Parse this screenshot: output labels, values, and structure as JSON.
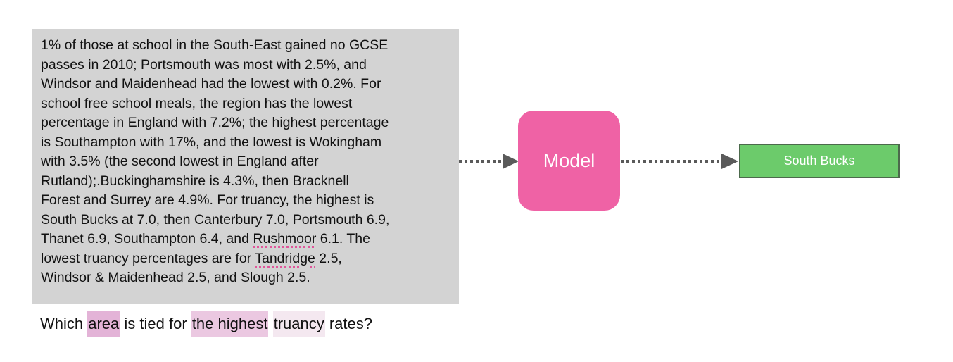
{
  "passage": {
    "before_rushmoor": "1% of those at school in the South-East gained no GCSE\npasses in 2010; Portsmouth was most with 2.5%, and\nWindsor and Maidenhead had the lowest with 0.2%. For\nschool free school meals, the region has the lowest\npercentage in England with 7.2%; the highest percentage\nis Southampton with 17%, and the lowest is Wokingham\nwith 3.5% (the second lowest in England after\nRutland);.Buckinghamshire is 4.3%, then Bracknell\nForest and Surrey are 4.9%. For truancy, the highest is\nSouth Bucks at 7.0, then Canterbury 7.0, Portsmouth 6.9,\nThanet 6.9, Southampton 6.4, and ",
    "rushmoor": "Rushmoor",
    "between": " 6.1. The\nlowest truancy percentages are for ",
    "tandridge": "Tandridge",
    "after_tandridge": " 2.5,\nWindsor & Maidenhead 2.5, and Slough 2.5."
  },
  "question": {
    "w1": "Which",
    "w2": "area",
    "w3": "is tied for",
    "w4": "the highest",
    "w5": "truancy",
    "w6": "rates?"
  },
  "model": {
    "label": "Model"
  },
  "output": {
    "label": "South Bucks"
  },
  "colors": {
    "passage_bg": "#d3d3d3",
    "model_bg": "#ef62a5",
    "output_bg": "#6ccb6b",
    "output_border": "#4c6a4c",
    "highlight_strong": "#e3b3d7",
    "highlight_medium": "#ebc8e1",
    "highlight_light": "#f4e8f0",
    "arrow": "#5a5a5a"
  }
}
